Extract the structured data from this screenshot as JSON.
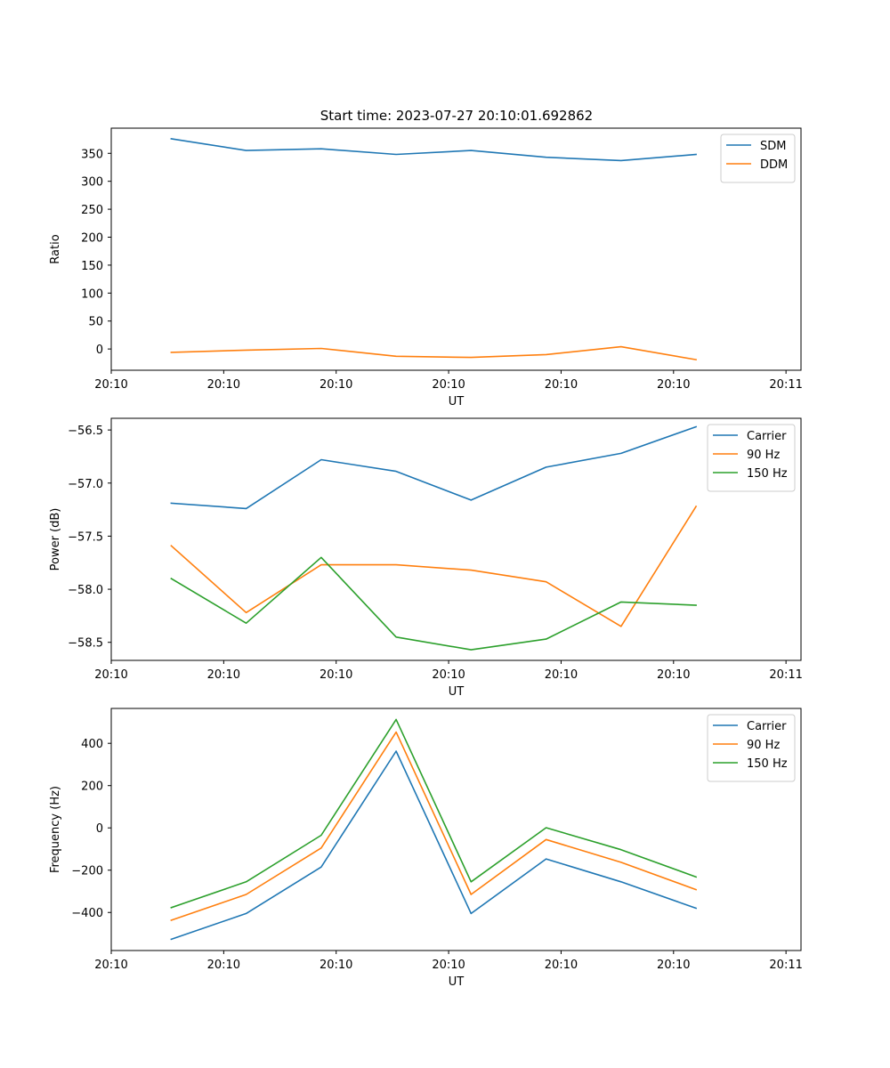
{
  "figure": {
    "title": "Start time: 2023-07-27 20:10:01.692862"
  },
  "chart_data": [
    {
      "type": "line",
      "title": "Start time: 2023-07-27 20:10:01.692862",
      "xlabel": "UT",
      "ylabel": "Ratio",
      "x": [
        1,
        2,
        3,
        4,
        5,
        6,
        7,
        8
      ],
      "xlim": [
        0.2,
        9.4
      ],
      "xticks": [
        0.2,
        1.7,
        3.2,
        4.7,
        6.2,
        7.7,
        9.2
      ],
      "xtick_labels": [
        "20:10",
        "20:10",
        "20:10",
        "20:10",
        "20:10",
        "20:10",
        "20:11"
      ],
      "ylim": [
        -38,
        395
      ],
      "yticks": [
        0,
        50,
        100,
        150,
        200,
        250,
        300,
        350
      ],
      "ytick_labels": [
        "0",
        "50",
        "100",
        "150",
        "200",
        "250",
        "300",
        "350"
      ],
      "legend_position": "top-right",
      "grid": false,
      "series": [
        {
          "name": "SDM",
          "color": "#1f77b4",
          "values": [
            376,
            355,
            358,
            348,
            355,
            343,
            337,
            348
          ]
        },
        {
          "name": "DDM",
          "color": "#ff7f0e",
          "values": [
            -6,
            -2,
            1,
            -13,
            -15,
            -10,
            4,
            -19
          ]
        }
      ]
    },
    {
      "type": "line",
      "title": "",
      "xlabel": "UT",
      "ylabel": "Power (dB)",
      "x": [
        1,
        2,
        3,
        4,
        5,
        6,
        7,
        8
      ],
      "xlim": [
        0.2,
        9.4
      ],
      "xticks": [
        0.2,
        1.7,
        3.2,
        4.7,
        6.2,
        7.7,
        9.2
      ],
      "xtick_labels": [
        "20:10",
        "20:10",
        "20:10",
        "20:10",
        "20:10",
        "20:10",
        "20:11"
      ],
      "ylim": [
        -58.67,
        -56.39
      ],
      "yticks": [
        -58.5,
        -58.0,
        -57.5,
        -57.0,
        -56.5
      ],
      "ytick_labels": [
        "−58.5",
        "−58.0",
        "−57.5",
        "−57.0",
        "−56.5"
      ],
      "legend_position": "top-right",
      "grid": false,
      "series": [
        {
          "name": "Carrier",
          "color": "#1f77b4",
          "values": [
            -57.19,
            -57.24,
            -56.78,
            -56.89,
            -57.16,
            -56.85,
            -56.72,
            -56.47
          ]
        },
        {
          "name": "90 Hz",
          "color": "#ff7f0e",
          "values": [
            -57.59,
            -58.22,
            -57.77,
            -57.77,
            -57.82,
            -57.93,
            -58.35,
            -57.22
          ]
        },
        {
          "name": "150 Hz",
          "color": "#2ca02c",
          "values": [
            -57.9,
            -58.32,
            -57.7,
            -58.45,
            -58.57,
            -58.47,
            -58.12,
            -58.15
          ]
        }
      ]
    },
    {
      "type": "line",
      "title": "",
      "xlabel": "UT",
      "ylabel": "Frequency (Hz)",
      "x": [
        1,
        2,
        3,
        4,
        5,
        6,
        7,
        8
      ],
      "xlim": [
        0.2,
        9.4
      ],
      "xticks": [
        0.2,
        1.7,
        3.2,
        4.7,
        6.2,
        7.7,
        9.2
      ],
      "xtick_labels": [
        "20:10",
        "20:10",
        "20:10",
        "20:10",
        "20:10",
        "20:10",
        "20:11"
      ],
      "ylim": [
        -580,
        565
      ],
      "yticks": [
        -400,
        -200,
        0,
        200,
        400
      ],
      "ytick_labels": [
        "−400",
        "−200",
        "0",
        "200",
        "400"
      ],
      "legend_position": "top-right",
      "grid": false,
      "series": [
        {
          "name": "Carrier",
          "color": "#1f77b4",
          "values": [
            -527,
            -405,
            -185,
            363,
            -405,
            -147,
            -255,
            -380
          ]
        },
        {
          "name": "90 Hz",
          "color": "#ff7f0e",
          "values": [
            -437,
            -315,
            -95,
            453,
            -315,
            -55,
            -163,
            -292
          ]
        },
        {
          "name": "150 Hz",
          "color": "#2ca02c",
          "values": [
            -377,
            -255,
            -35,
            513,
            -255,
            1,
            -103,
            -232
          ]
        }
      ]
    }
  ]
}
